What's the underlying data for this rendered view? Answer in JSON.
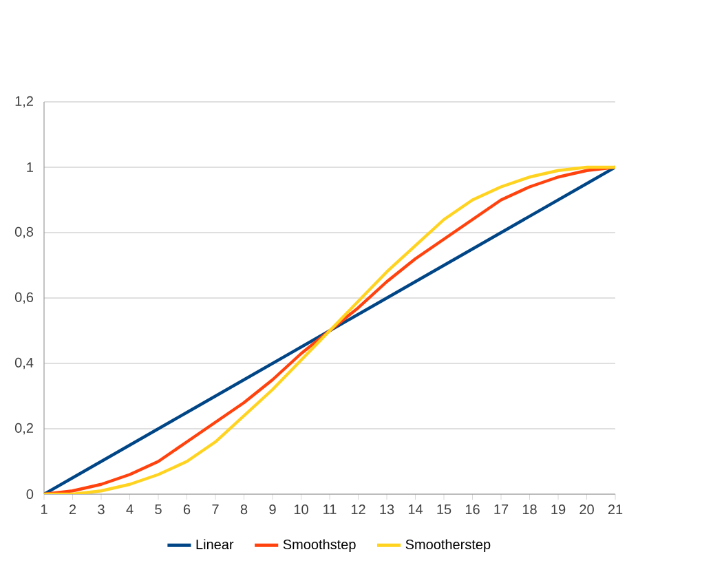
{
  "chart_data": {
    "type": "line",
    "x": [
      1,
      2,
      3,
      4,
      5,
      6,
      7,
      8,
      9,
      10,
      11,
      12,
      13,
      14,
      15,
      16,
      17,
      18,
      19,
      20,
      21
    ],
    "series": [
      {
        "name": "Linear",
        "color": "#004586",
        "values": [
          0,
          0.05,
          0.1,
          0.15,
          0.2,
          0.25,
          0.3,
          0.35,
          0.4,
          0.45,
          0.5,
          0.55,
          0.6,
          0.65,
          0.7,
          0.75,
          0.8,
          0.85,
          0.9,
          0.95,
          1
        ]
      },
      {
        "name": "Smoothstep",
        "color": "#ff420e",
        "values": [
          0,
          0.01,
          0.03,
          0.06,
          0.1,
          0.16,
          0.22,
          0.28,
          0.35,
          0.43,
          0.5,
          0.57,
          0.65,
          0.72,
          0.78,
          0.84,
          0.9,
          0.94,
          0.97,
          0.99,
          1
        ]
      },
      {
        "name": "Smootherstep",
        "color": "#ffd320",
        "values": [
          0,
          0,
          0.01,
          0.03,
          0.06,
          0.1,
          0.16,
          0.24,
          0.32,
          0.41,
          0.5,
          0.59,
          0.68,
          0.76,
          0.84,
          0.9,
          0.94,
          0.97,
          0.99,
          1,
          1
        ]
      }
    ],
    "xlim": [
      1,
      21
    ],
    "xticks": [
      1,
      2,
      3,
      4,
      5,
      6,
      7,
      8,
      9,
      10,
      11,
      12,
      13,
      14,
      15,
      16,
      17,
      18,
      19,
      20,
      21
    ],
    "ylim": [
      0,
      1.2
    ],
    "yticks": [
      0,
      {
        "value": 0.2,
        "label": "0,2"
      },
      {
        "value": 0.4,
        "label": "0,4"
      },
      {
        "value": 0.6,
        "label": "0,6"
      },
      {
        "value": 0.8,
        "label": "0,8"
      },
      1,
      {
        "value": 1.2,
        "label": "1,2"
      }
    ],
    "grid": "y",
    "legend": "bottom",
    "marker": "none",
    "line_style": "solid"
  }
}
